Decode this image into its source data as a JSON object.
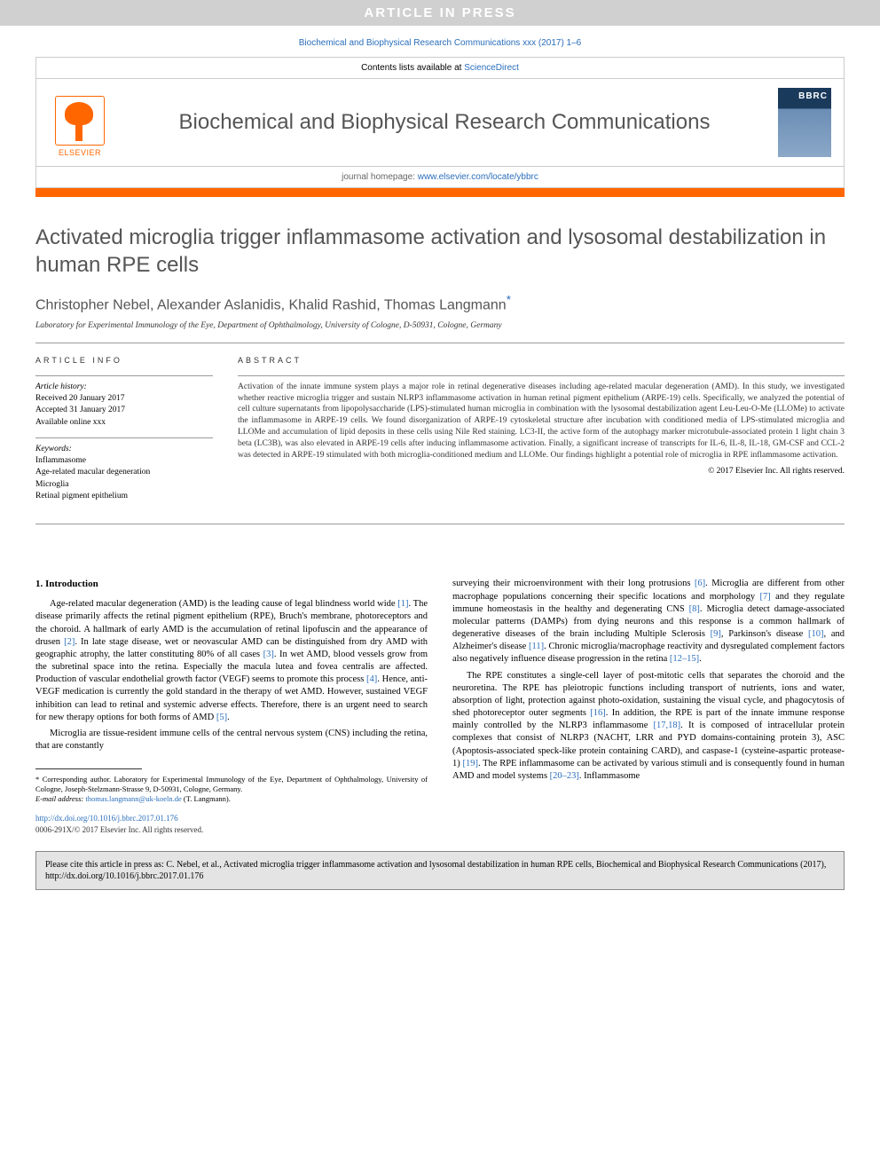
{
  "banner": "ARTICLE IN PRESS",
  "citation_header": "Biochemical and Biophysical Research Communications xxx (2017) 1–6",
  "header": {
    "contents_prefix": "Contents lists available at ",
    "contents_link": "ScienceDirect",
    "journal_name": "Biochemical and Biophysical Research Communications",
    "homepage_prefix": "journal homepage: ",
    "homepage_link": "www.elsevier.com/locate/ybbrc",
    "publisher_label": "ELSEVIER",
    "cover_label": "BBRC"
  },
  "title": "Activated microglia trigger inflammasome activation and lysosomal destabilization in human RPE cells",
  "authors": "Christopher Nebel, Alexander Aslanidis, Khalid Rashid, Thomas Langmann",
  "corr_mark": "*",
  "affiliation": "Laboratory for Experimental Immunology of the Eye, Department of Ophthalmology, University of Cologne, D-50931, Cologne, Germany",
  "info": {
    "heading": "ARTICLE INFO",
    "history_label": "Article history:",
    "received": "Received 20 January 2017",
    "accepted": "Accepted 31 January 2017",
    "available": "Available online xxx",
    "keywords_label": "Keywords:",
    "keywords": [
      "Inflammasome",
      "Age-related macular degeneration",
      "Microglia",
      "Retinal pigment epithelium"
    ]
  },
  "abstract": {
    "heading": "ABSTRACT",
    "text": "Activation of the innate immune system plays a major role in retinal degenerative diseases including age-related macular degeneration (AMD). In this study, we investigated whether reactive microglia trigger and sustain NLRP3 inflammasome activation in human retinal pigment epithelium (ARPE-19) cells. Specifically, we analyzed the potential of cell culture supernatants from lipopolysaccharide (LPS)-stimulated human microglia in combination with the lysosomal destabilization agent Leu-Leu-O-Me (LLOMe) to activate the inflammasome in ARPE-19 cells. We found disorganization of ARPE-19 cytoskeletal structure after incubation with conditioned media of LPS-stimulated microglia and LLOMe and accumulation of lipid deposits in these cells using Nile Red staining. LC3-II, the active form of the autophagy marker microtubule-associated protein 1 light chain 3 beta (LC3B), was also elevated in ARPE-19 cells after inducing inflammasome activation. Finally, a significant increase of transcripts for IL-6, IL-8, IL-18, GM-CSF and CCL-2 was detected in ARPE-19 stimulated with both microglia-conditioned medium and LLOMe. Our findings highlight a potential role of microglia in RPE inflammasome activation.",
    "copyright": "© 2017 Elsevier Inc. All rights reserved."
  },
  "body": {
    "section_1_heading": "1. Introduction",
    "col1_p1": "Age-related macular degeneration (AMD) is the leading cause of legal blindness world wide [1]. The disease primarily affects the retinal pigment epithelium (RPE), Bruch's membrane, photoreceptors and the choroid. A hallmark of early AMD is the accumulation of retinal lipofuscin and the appearance of drusen [2]. In late stage disease, wet or neovascular AMD can be distinguished from dry AMD with geographic atrophy, the latter constituting 80% of all cases [3]. In wet AMD, blood vessels grow from the subretinal space into the retina. Especially the macula lutea and fovea centralis are affected. Production of vascular endothelial growth factor (VEGF) seems to promote this process [4]. Hence, anti-VEGF medication is currently the gold standard in the therapy of wet AMD. However, sustained VEGF inhibition can lead to retinal and systemic adverse effects. Therefore, there is an urgent need to search for new therapy options for both forms of AMD [5].",
    "col1_p2": "Microglia are tissue-resident immune cells of the central nervous system (CNS) including the retina, that are constantly",
    "col2_p1": "surveying their microenvironment with their long protrusions [6]. Microglia are different from other macrophage populations concerning their specific locations and morphology [7] and they regulate immune homeostasis in the healthy and degenerating CNS [8]. Microglia detect damage-associated molecular patterns (DAMPs) from dying neurons and this response is a common hallmark of degenerative diseases of the brain including Multiple Sclerosis [9], Parkinson's disease [10], and Alzheimer's disease [11]. Chronic microglia/macrophage reactivity and dysregulated complement factors also negatively influence disease progression in the retina [12–15].",
    "col2_p2": "The RPE constitutes a single-cell layer of post-mitotic cells that separates the choroid and the neuroretina. The RPE has pleiotropic functions including transport of nutrients, ions and water, absorption of light, protection against photo-oxidation, sustaining the visual cycle, and phagocytosis of shed photoreceptor outer segments [16]. In addition, the RPE is part of the innate immune response mainly controlled by the NLRP3 inflammasome [17,18]. It is composed of intracellular protein complexes that consist of NLRP3 (NACHT, LRR and PYD domains-containing protein 3), ASC (Apoptosis-associated speck-like protein containing CARD), and caspase-1 (cysteine-aspartic protease-1) [19]. The RPE inflammasome can be activated by various stimuli and is consequently found in human AMD and model systems [20–23]. Inflammasome"
  },
  "footnotes": {
    "corr_author": "* Corresponding author. Laboratory for Experimental Immunology of the Eye, Department of Ophthalmology, University of Cologne, Joseph-Stelzmann-Strasse 9, D-50931, Cologne, Germany.",
    "email_label": "E-mail address: ",
    "email": "thomas.langmann@uk-koeln.de",
    "email_suffix": " (T. Langmann)."
  },
  "doi": {
    "url": "http://dx.doi.org/10.1016/j.bbrc.2017.01.176",
    "issn": "0006-291X/© 2017 Elsevier Inc. All rights reserved."
  },
  "cite_box": "Please cite this article in press as: C. Nebel, et al., Activated microglia trigger inflammasome activation and lysosomal destabilization in human RPE cells, Biochemical and Biophysical Research Communications (2017), http://dx.doi.org/10.1016/j.bbrc.2017.01.176",
  "colors": {
    "link": "#2a6ebb",
    "orange": "#ff6600",
    "banner_bg": "#d0d0d0",
    "citebox_bg": "#e4e4e4"
  }
}
